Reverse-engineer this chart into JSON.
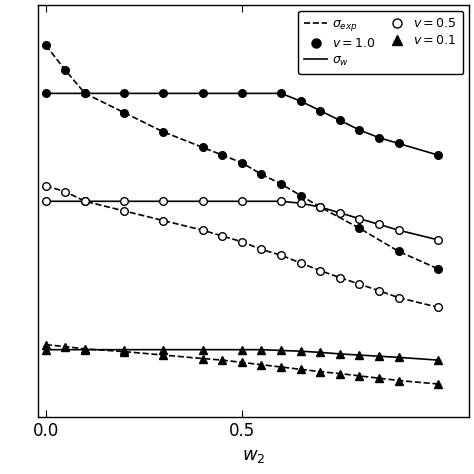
{
  "xlabel": "$w_2$",
  "xlim": [
    -0.02,
    1.08
  ],
  "ylim": [
    -0.02,
    1.05
  ],
  "sw_v10_x": [
    0.0,
    0.1,
    0.2,
    0.3,
    0.4,
    0.5,
    0.6,
    0.65,
    0.7,
    0.75,
    0.8,
    0.85,
    0.9,
    1.0
  ],
  "sw_v10_y": [
    0.82,
    0.82,
    0.82,
    0.82,
    0.82,
    0.82,
    0.82,
    0.8,
    0.775,
    0.75,
    0.725,
    0.705,
    0.69,
    0.66
  ],
  "se_v10_x": [
    0.0,
    0.05,
    0.1,
    0.2,
    0.3,
    0.4,
    0.45,
    0.5,
    0.55,
    0.6,
    0.65,
    0.7,
    0.8,
    0.9,
    1.0
  ],
  "se_v10_y": [
    0.945,
    0.88,
    0.82,
    0.77,
    0.72,
    0.68,
    0.66,
    0.64,
    0.61,
    0.585,
    0.555,
    0.525,
    0.47,
    0.41,
    0.365
  ],
  "sw_v05_x": [
    0.0,
    0.1,
    0.2,
    0.3,
    0.4,
    0.5,
    0.6,
    0.65,
    0.7,
    0.75,
    0.8,
    0.85,
    0.9,
    1.0
  ],
  "sw_v05_y": [
    0.54,
    0.54,
    0.54,
    0.54,
    0.54,
    0.54,
    0.54,
    0.535,
    0.525,
    0.51,
    0.495,
    0.48,
    0.465,
    0.44
  ],
  "se_v05_x": [
    0.0,
    0.05,
    0.1,
    0.2,
    0.3,
    0.4,
    0.45,
    0.5,
    0.55,
    0.6,
    0.65,
    0.7,
    0.75,
    0.8,
    0.85,
    0.9,
    1.0
  ],
  "se_v05_y": [
    0.58,
    0.565,
    0.54,
    0.515,
    0.49,
    0.465,
    0.45,
    0.435,
    0.415,
    0.4,
    0.38,
    0.36,
    0.342,
    0.325,
    0.308,
    0.29,
    0.265
  ],
  "sw_v01_x": [
    0.0,
    0.1,
    0.2,
    0.3,
    0.4,
    0.5,
    0.55,
    0.6,
    0.65,
    0.7,
    0.75,
    0.8,
    0.85,
    0.9,
    1.0
  ],
  "sw_v01_y": [
    0.155,
    0.155,
    0.155,
    0.155,
    0.155,
    0.155,
    0.155,
    0.153,
    0.151,
    0.148,
    0.144,
    0.141,
    0.138,
    0.135,
    0.128
  ],
  "se_v01_x": [
    0.0,
    0.05,
    0.1,
    0.2,
    0.3,
    0.4,
    0.45,
    0.5,
    0.55,
    0.6,
    0.65,
    0.7,
    0.75,
    0.8,
    0.85,
    0.9,
    1.0
  ],
  "se_v01_y": [
    0.168,
    0.163,
    0.157,
    0.15,
    0.141,
    0.132,
    0.128,
    0.122,
    0.116,
    0.11,
    0.104,
    0.098,
    0.093,
    0.087,
    0.081,
    0.075,
    0.066
  ],
  "line_color": "black",
  "bg_color": "white",
  "xticks": [
    0.0,
    0.5
  ],
  "yticks": []
}
